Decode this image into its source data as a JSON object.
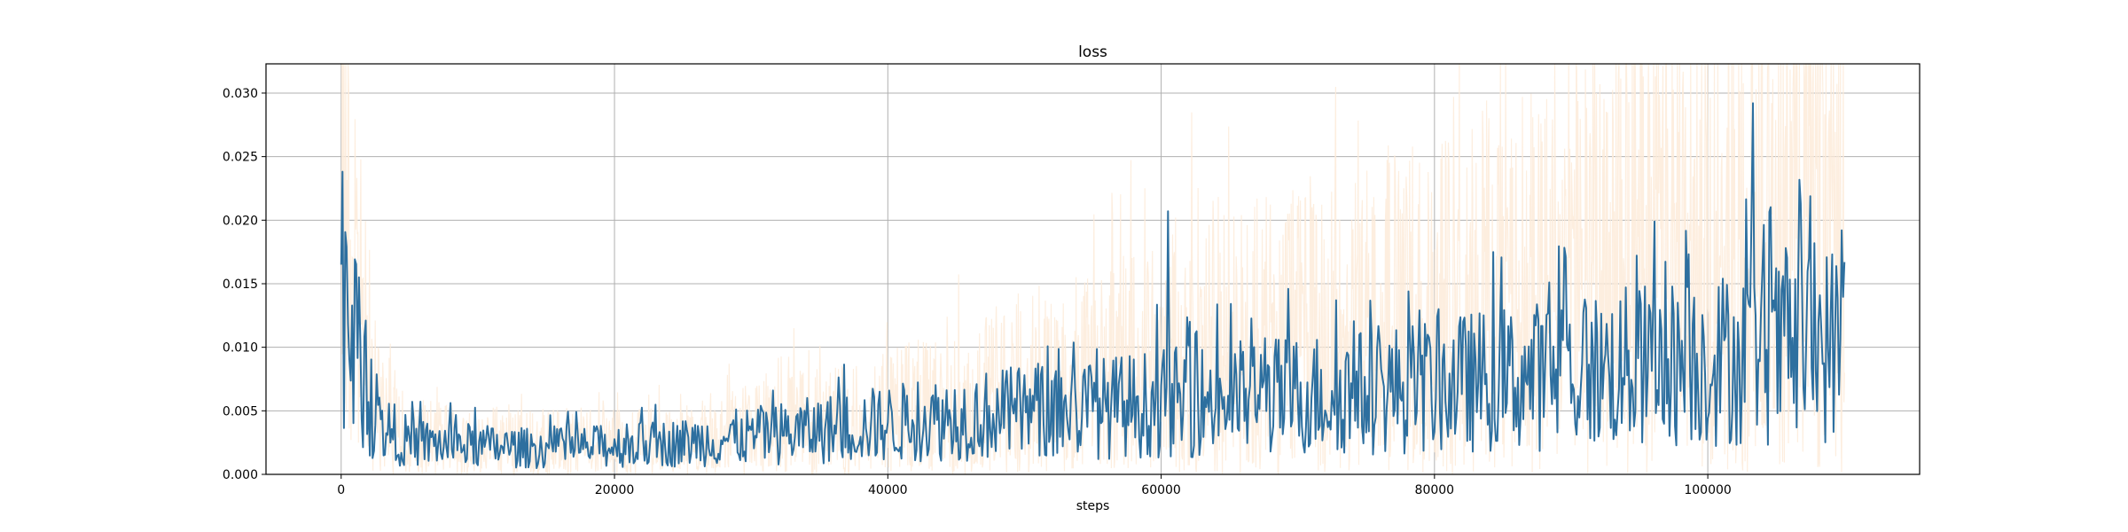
{
  "chart_data": {
    "type": "line",
    "title": "loss",
    "xlabel": "steps",
    "ylabel": "",
    "xlim": [
      -5500,
      115500
    ],
    "ylim": [
      0,
      0.0323
    ],
    "grid": true,
    "x_ticks": [
      0,
      20000,
      40000,
      60000,
      80000,
      100000
    ],
    "x_tick_labels": [
      "0",
      "20000",
      "40000",
      "60000",
      "80000",
      "100000"
    ],
    "y_ticks": [
      0,
      0.005,
      0.01,
      0.015,
      0.02,
      0.025,
      0.03
    ],
    "y_tick_labels": [
      "0.000",
      "0.005",
      "0.010",
      "0.015",
      "0.020",
      "0.025",
      "0.030"
    ],
    "series": [
      {
        "role": "raw",
        "color": "#fdebd9",
        "x_range": [
          0,
          110000
        ],
        "baseline": [
          [
            0,
            0.03
          ],
          [
            1000,
            0.016
          ],
          [
            2500,
            0.006
          ],
          [
            5000,
            0.0032
          ],
          [
            15000,
            0.0027
          ],
          [
            25000,
            0.003
          ],
          [
            35000,
            0.0045
          ],
          [
            45000,
            0.006
          ],
          [
            55000,
            0.0085
          ],
          [
            65000,
            0.011
          ],
          [
            75000,
            0.0135
          ],
          [
            85000,
            0.016
          ],
          [
            95000,
            0.019
          ],
          [
            105000,
            0.022
          ],
          [
            110000,
            0.023
          ]
        ],
        "spread": 0.9
      },
      {
        "role": "smoothed",
        "color": "#2d6f9f",
        "x_range": [
          0,
          110000
        ],
        "baseline": [
          [
            0,
            0.0165
          ],
          [
            1000,
            0.01
          ],
          [
            2500,
            0.004
          ],
          [
            5000,
            0.0025
          ],
          [
            15000,
            0.002
          ],
          [
            25000,
            0.0025
          ],
          [
            35000,
            0.0035
          ],
          [
            45000,
            0.0045
          ],
          [
            55000,
            0.0052
          ],
          [
            65000,
            0.006
          ],
          [
            75000,
            0.0065
          ],
          [
            85000,
            0.0075
          ],
          [
            95000,
            0.0085
          ],
          [
            105000,
            0.0095
          ],
          [
            110000,
            0.0105
          ]
        ],
        "peaks": [
          [
            60500,
            0.0207
          ],
          [
            103300,
            0.0292
          ],
          [
            106800,
            0.0213
          ],
          [
            110000,
            0.0167
          ]
        ],
        "spread": 0.55
      }
    ]
  }
}
